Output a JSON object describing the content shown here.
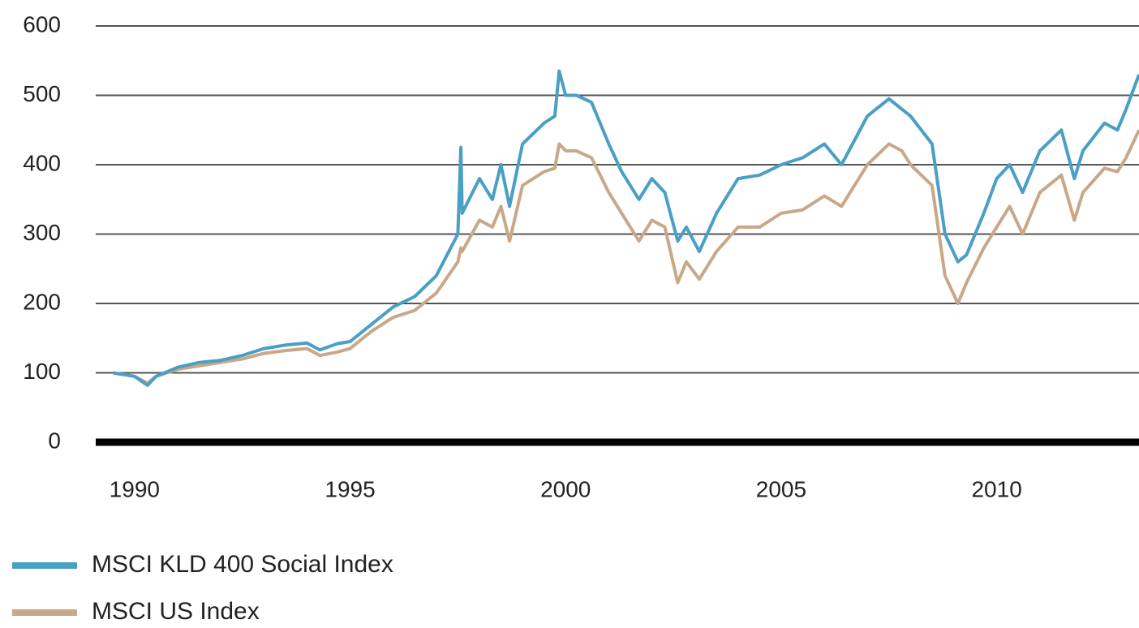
{
  "chart_data": {
    "type": "line",
    "x": [
      1989.5,
      1990.0,
      1990.3,
      1990.5,
      1991.0,
      1991.5,
      1992.0,
      1992.5,
      1993.0,
      1993.5,
      1994.0,
      1994.3,
      1994.7,
      1995.0,
      1995.5,
      1996.0,
      1996.5,
      1997.0,
      1997.5,
      1997.57,
      1997.6,
      1998.0,
      1998.3,
      1998.5,
      1998.7,
      1999.0,
      1999.5,
      1999.75,
      1999.85,
      2000.0,
      2000.25,
      2000.6,
      2001.0,
      2001.3,
      2001.7,
      2002.0,
      2002.3,
      2002.6,
      2002.8,
      2003.1,
      2003.5,
      2004.0,
      2004.5,
      2005.0,
      2005.5,
      2006.0,
      2006.4,
      2007.0,
      2007.5,
      2007.8,
      2008.0,
      2008.5,
      2008.8,
      2009.1,
      2009.3,
      2009.7,
      2010.0,
      2010.3,
      2010.6,
      2011.0,
      2011.5,
      2011.8,
      2012.0,
      2012.5,
      2012.8,
      2013.0,
      2013.3
    ],
    "series": [
      {
        "name": "MSCI KLD 400 Social Index",
        "color": "#4a9fc4",
        "values": [
          100,
          95,
          82,
          95,
          108,
          115,
          118,
          125,
          135,
          140,
          143,
          133,
          142,
          145,
          170,
          195,
          210,
          240,
          300,
          425,
          330,
          380,
          350,
          400,
          340,
          430,
          460,
          470,
          535,
          500,
          500,
          490,
          430,
          390,
          350,
          380,
          360,
          290,
          310,
          275,
          330,
          380,
          385,
          400,
          410,
          430,
          400,
          470,
          495,
          480,
          470,
          430,
          300,
          260,
          270,
          330,
          380,
          400,
          360,
          420,
          450,
          380,
          420,
          460,
          450,
          480,
          530
        ]
      },
      {
        "name": "MSCI US Index",
        "color": "#c8a888",
        "values": [
          100,
          95,
          85,
          95,
          105,
          110,
          115,
          120,
          128,
          132,
          135,
          125,
          130,
          135,
          160,
          180,
          190,
          215,
          260,
          280,
          275,
          320,
          310,
          340,
          290,
          370,
          390,
          395,
          430,
          420,
          420,
          410,
          360,
          330,
          290,
          320,
          310,
          230,
          260,
          235,
          275,
          310,
          310,
          330,
          335,
          355,
          340,
          400,
          430,
          420,
          400,
          370,
          240,
          200,
          230,
          280,
          310,
          340,
          300,
          360,
          385,
          320,
          360,
          395,
          390,
          410,
          450
        ]
      }
    ],
    "xlim": [
      1989.1,
      2013.3
    ],
    "xticks": [
      1990,
      1995,
      2000,
      2005,
      2010
    ],
    "ylim": [
      0,
      600
    ],
    "yticks": [
      0,
      100,
      200,
      300,
      400,
      500,
      600
    ],
    "grid": true,
    "legend": "bottom-left"
  }
}
